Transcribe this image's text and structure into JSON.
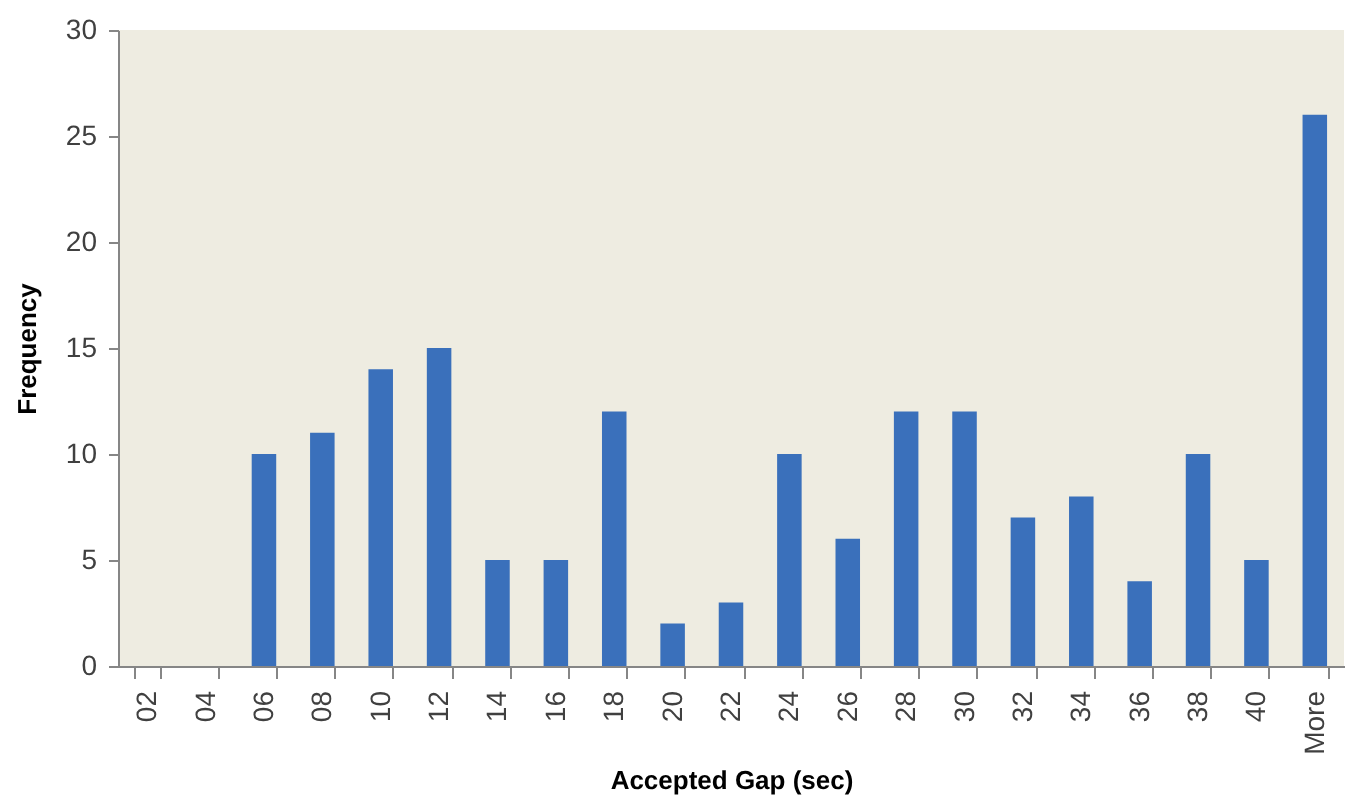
{
  "chart_data": {
    "type": "bar",
    "xlabel": "Accepted Gap (sec)",
    "ylabel": "Frequency",
    "categories": [
      "02",
      "04",
      "06",
      "08",
      "10",
      "12",
      "14",
      "16",
      "18",
      "20",
      "22",
      "24",
      "26",
      "28",
      "30",
      "32",
      "34",
      "36",
      "38",
      "40",
      "More"
    ],
    "values": [
      0,
      0,
      10,
      11,
      14,
      15,
      5,
      5,
      12,
      2,
      3,
      10,
      6,
      12,
      12,
      7,
      8,
      4,
      10,
      5,
      26
    ],
    "color": "#3a70bb",
    "ylim": [
      0,
      30
    ],
    "yticks": [
      0,
      5,
      10,
      15,
      20,
      25,
      30
    ]
  }
}
